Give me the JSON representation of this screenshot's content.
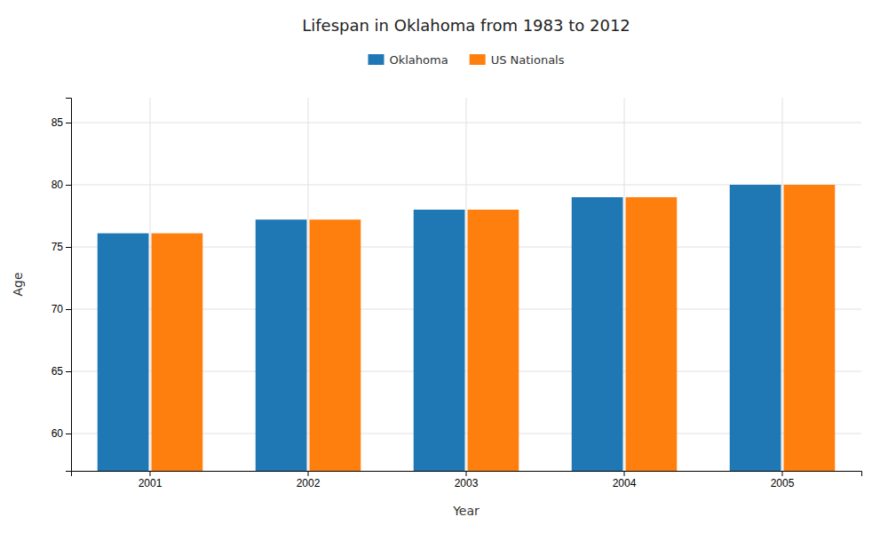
{
  "chart_data": {
    "type": "bar",
    "title": "Lifespan in Oklahoma from 1983 to 2012",
    "x_label": "Year",
    "y_label": "Age",
    "categories": [
      "2001",
      "2002",
      "2003",
      "2004",
      "2005"
    ],
    "series": [
      {
        "name": "Oklahoma",
        "values": [
          76.1,
          77.2,
          78.0,
          79.0,
          80.0
        ]
      },
      {
        "name": "US Nationals",
        "values": [
          76.1,
          77.2,
          78.0,
          79.0,
          80.0
        ]
      }
    ],
    "ylim": [
      57,
      87
    ],
    "yticks": [
      60,
      65,
      70,
      75,
      80,
      85
    ],
    "grid": true,
    "legend": "top"
  }
}
